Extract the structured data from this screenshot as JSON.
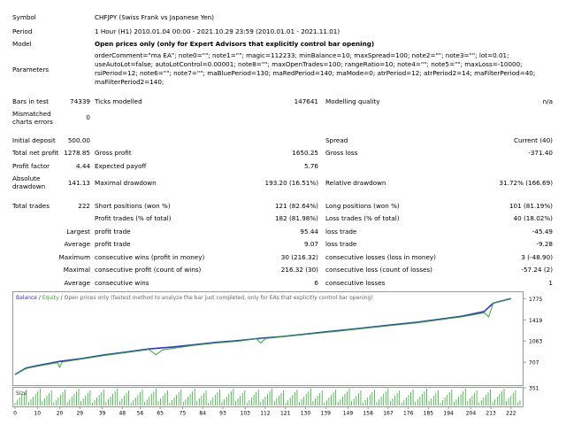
{
  "report": {
    "symbol": {
      "label": "Symbol",
      "value": "CHFJPY (Swiss Frank vs Japanese Yen)"
    },
    "period": {
      "label": "Period",
      "value": "1 Hour (H1) 2010.01.04 00:00 - 2021.10.29 23:59 (2010.01.01 - 2021.11.01)"
    },
    "model": {
      "label": "Model",
      "value": "Open prices only (only for Expert Advisors that explicitly control bar opening)"
    },
    "parameters": {
      "label": "Parameters",
      "value": "orderComment=\"ma EA\"; note0=\"\"; note1=\"\"; magic=112233; minBalance=10; maxSpread=100; note2=\"\"; note3=\"\"; lot=0.01; useAutoLot=false; autoLotControl=0.00001; note8=\"\"; maxOpenTrades=100; rangeRatio=10; note4=\"\"; note5=\"\"; maxLoss=-10000; rsiPeriod=12; note6=\"\"; note7=\"\"; maBluePeriod=130; maRedPeriod=140; maMode=0; atrPeriod=12; atrPeriod2=14; maFilterPeriod=40; maFilterPeriod2=140;"
    },
    "bars_in_test": {
      "label": "Bars in test",
      "value": "74339"
    },
    "ticks_modelled": {
      "label": "Ticks modelled",
      "value": "147641"
    },
    "modelling_quality": {
      "label": "Modelling quality",
      "value": "n/a"
    },
    "mismatched": {
      "label": "Mismatched charts errors",
      "value": "0"
    },
    "initial_deposit": {
      "label": "Initial deposit",
      "value": "500.00"
    },
    "spread": {
      "label": "Spread",
      "value": "Current (40)"
    },
    "total_net_profit": {
      "label": "Total net profit",
      "value": "1278.85"
    },
    "gross_profit": {
      "label": "Gross profit",
      "value": "1650.25"
    },
    "gross_loss": {
      "label": "Gross loss",
      "value": "-371.40"
    },
    "profit_factor": {
      "label": "Profit factor",
      "value": "4.44"
    },
    "expected_payoff": {
      "label": "Expected payoff",
      "value": "5.76"
    },
    "absolute_drawdown": {
      "label": "Absolute drawdown",
      "value": "141.13"
    },
    "maximal_drawdown": {
      "label": "Maximal drawdown",
      "value": "193.20 (16.51%)"
    },
    "relative_drawdown": {
      "label": "Relative drawdown",
      "value": "31.72% (166.69)"
    },
    "total_trades": {
      "label": "Total trades",
      "value": "222"
    },
    "short_positions": {
      "label": "Short positions (won %)",
      "value": "121 (82.64%)"
    },
    "long_positions": {
      "label": "Long positions (won %)",
      "value": "101 (81.19%)"
    },
    "profit_trades": {
      "label": "Profit trades (% of total)",
      "value": "182 (81.98%)"
    },
    "loss_trades": {
      "label": "Loss trades (% of total)",
      "value": "40 (18.02%)"
    },
    "largest_label": "Largest",
    "largest_profit": {
      "label": "profit trade",
      "value": "95.44"
    },
    "largest_loss": {
      "label": "loss trade",
      "value": "-45.49"
    },
    "average_label": "Average",
    "average_profit": {
      "label": "profit trade",
      "value": "9.07"
    },
    "average_loss": {
      "label": "loss trade",
      "value": "-9.28"
    },
    "maximum_label": "Maximum",
    "max_cons_wins": {
      "label": "consecutive wins (profit in money)",
      "value": "30 (216.32)"
    },
    "max_cons_losses": {
      "label": "consecutive losses (loss in money)",
      "value": "3 (-48.90)"
    },
    "maximal_label": "Maximal",
    "maximal_cons_profit": {
      "label": "consecutive profit (count of wins)",
      "value": "216.32 (30)"
    },
    "maximal_cons_loss": {
      "label": "consecutive loss (count of losses)",
      "value": "-57.24 (2)"
    },
    "average_label2": "Average",
    "avg_cons_wins": {
      "label": "consecutive wins",
      "value": "6"
    },
    "avg_cons_losses": {
      "label": "consecutive losses",
      "value": "1"
    }
  },
  "chart_data": {
    "type": "line",
    "legend": {
      "balance": "Balance",
      "sep1": " / ",
      "equity": "Equity",
      "sep2": " / ",
      "note": "Open prices only (fastest method to analyze the bar just completed, only for EAs that explicitly control bar opening)"
    },
    "y_ticks": [
      "1775",
      "1419",
      "1063",
      "707",
      "351"
    ],
    "y_tick_values": [
      1775,
      1419,
      1063,
      707,
      351
    ],
    "ylim": [
      351,
      1855
    ],
    "xlim": [
      0,
      226
    ],
    "x_ticks": [
      "0",
      "10",
      "20",
      "29",
      "39",
      "48",
      "56",
      "65",
      "75",
      "84",
      "93",
      "103",
      "112",
      "121",
      "130",
      "139",
      "149",
      "158",
      "167",
      "176",
      "185",
      "194",
      "204",
      "213",
      "222"
    ],
    "size_label": "Size",
    "series": [
      {
        "name": "Balance",
        "color": "#3333cc",
        "x": [
          0,
          5,
          10,
          20,
          30,
          40,
          50,
          60,
          70,
          80,
          90,
          100,
          110,
          120,
          130,
          140,
          150,
          160,
          170,
          180,
          190,
          200,
          210,
          214,
          222
        ],
        "y": [
          500,
          610,
          650,
          720,
          770,
          830,
          880,
          930,
          960,
          1000,
          1040,
          1070,
          1110,
          1140,
          1180,
          1220,
          1260,
          1300,
          1340,
          1380,
          1430,
          1480,
          1560,
          1700,
          1778
        ]
      },
      {
        "name": "Equity",
        "color": "#33aa33",
        "x": [
          0,
          5,
          10,
          19,
          20,
          21,
          30,
          40,
          60,
          63,
          66,
          80,
          90,
          100,
          108,
          110,
          112,
          130,
          140,
          150,
          160,
          180,
          200,
          210,
          212,
          214,
          222
        ],
        "y": [
          500,
          600,
          640,
          700,
          620,
          710,
          760,
          820,
          920,
          830,
          915,
          990,
          1030,
          1060,
          1100,
          1030,
          1105,
          1175,
          1210,
          1250,
          1290,
          1370,
          1470,
          1540,
          1470,
          1700,
          1778
        ]
      }
    ],
    "volume": {
      "color": "#33aa33",
      "x_step": 1,
      "count": 223
    }
  }
}
